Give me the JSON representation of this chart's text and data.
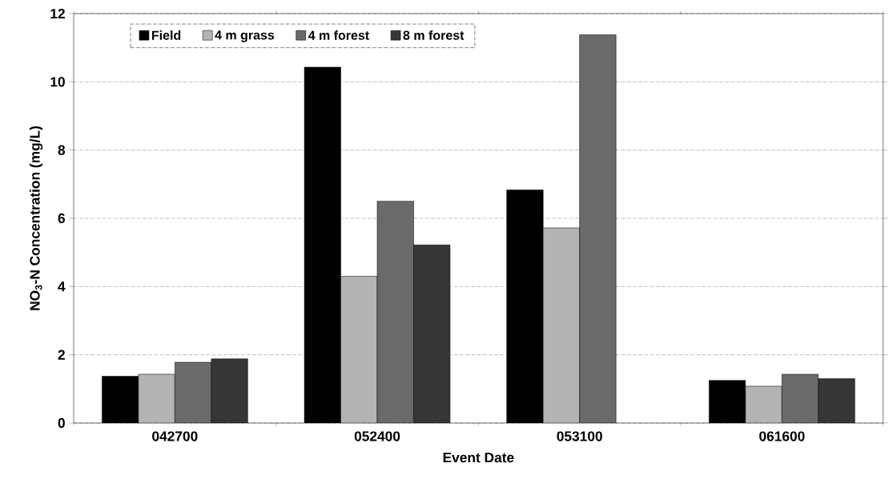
{
  "chart_data": {
    "type": "bar",
    "xlabel": "Event Date",
    "ylabel": "NO$_{3}$-N Concentration (mg/L)",
    "categories": [
      "042700",
      "052400",
      "053100",
      "061600"
    ],
    "series": [
      {
        "name": "Field",
        "color": "#000000",
        "values": [
          1.37,
          10.43,
          6.83,
          1.25
        ]
      },
      {
        "name": "4 m grass",
        "color": "#b4b4b4",
        "values": [
          1.43,
          4.3,
          5.72,
          1.08
        ]
      },
      {
        "name": "4 m forest",
        "color": "#6a6a6a",
        "values": [
          1.78,
          6.5,
          11.38,
          1.43
        ]
      },
      {
        "name": "8 m forest",
        "color": "#363636",
        "values": [
          1.88,
          5.22,
          null,
          1.3
        ]
      }
    ],
    "ylim": [
      0,
      12
    ],
    "yticks": [
      0,
      2,
      4,
      6,
      8,
      10,
      12
    ],
    "grid": "y",
    "legend": "top left"
  }
}
